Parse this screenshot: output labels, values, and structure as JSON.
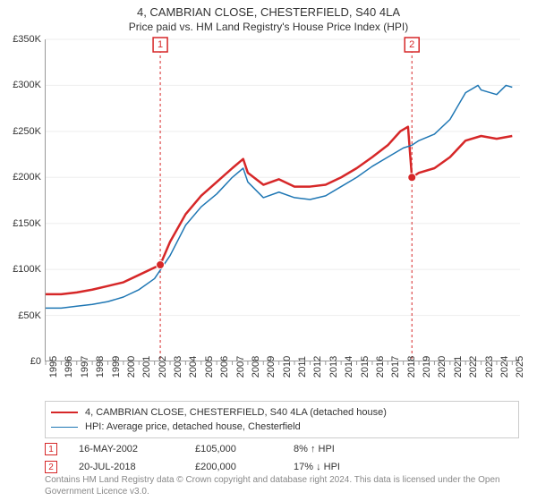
{
  "title": "4, CAMBRIAN CLOSE, CHESTERFIELD, S40 4LA",
  "subtitle": "Price paid vs. HM Land Registry's House Price Index (HPI)",
  "chart": {
    "type": "line",
    "background_color": "#ffffff",
    "grid_color": "#eeeeee",
    "axis_color": "#999999",
    "title_fontsize": 13,
    "subtitle_fontsize": 12,
    "tick_fontsize": 11,
    "legend_fontsize": 11,
    "x": {
      "min": 1995,
      "max": 2025.5,
      "ticks": [
        1995,
        1996,
        1997,
        1998,
        1999,
        2000,
        2001,
        2002,
        2003,
        2004,
        2005,
        2006,
        2007,
        2008,
        2009,
        2010,
        2011,
        2012,
        2013,
        2014,
        2015,
        2016,
        2017,
        2018,
        2019,
        2020,
        2021,
        2022,
        2023,
        2024,
        2025
      ]
    },
    "y": {
      "min": 0,
      "max": 350000,
      "ticks": [
        0,
        50000,
        100000,
        150000,
        200000,
        250000,
        300000,
        350000
      ],
      "tick_labels": [
        "£0",
        "£50K",
        "£100K",
        "£150K",
        "£200K",
        "£250K",
        "£300K",
        "£350K"
      ]
    },
    "series": [
      {
        "name": "4, CAMBRIAN CLOSE, CHESTERFIELD, S40 4LA (detached house)",
        "color": "#d62728",
        "line_width": 2.5,
        "data": [
          [
            1995,
            73000
          ],
          [
            1996,
            73000
          ],
          [
            1997,
            75000
          ],
          [
            1998,
            78000
          ],
          [
            1999,
            82000
          ],
          [
            2000,
            86000
          ],
          [
            2001,
            94000
          ],
          [
            2002.37,
            105000
          ],
          [
            2003,
            130000
          ],
          [
            2004,
            160000
          ],
          [
            2005,
            180000
          ],
          [
            2006,
            195000
          ],
          [
            2007,
            210000
          ],
          [
            2007.7,
            220000
          ],
          [
            2008,
            205000
          ],
          [
            2009,
            192000
          ],
          [
            2010,
            198000
          ],
          [
            2011,
            190000
          ],
          [
            2012,
            190000
          ],
          [
            2013,
            192000
          ],
          [
            2014,
            200000
          ],
          [
            2015,
            210000
          ],
          [
            2016,
            222000
          ],
          [
            2017,
            235000
          ],
          [
            2017.8,
            250000
          ],
          [
            2018.3,
            255000
          ],
          [
            2018.55,
            200000
          ],
          [
            2019,
            205000
          ],
          [
            2020,
            210000
          ],
          [
            2021,
            222000
          ],
          [
            2022,
            240000
          ],
          [
            2023,
            245000
          ],
          [
            2024,
            242000
          ],
          [
            2025,
            245000
          ]
        ]
      },
      {
        "name": "HPI: Average price, detached house, Chesterfield",
        "color": "#1f77b4",
        "line_width": 1.5,
        "data": [
          [
            1995,
            58000
          ],
          [
            1996,
            58000
          ],
          [
            1997,
            60000
          ],
          [
            1998,
            62000
          ],
          [
            1999,
            65000
          ],
          [
            2000,
            70000
          ],
          [
            2001,
            78000
          ],
          [
            2002,
            90000
          ],
          [
            2003,
            115000
          ],
          [
            2004,
            148000
          ],
          [
            2005,
            168000
          ],
          [
            2006,
            182000
          ],
          [
            2007,
            200000
          ],
          [
            2007.7,
            210000
          ],
          [
            2008,
            195000
          ],
          [
            2009,
            178000
          ],
          [
            2010,
            184000
          ],
          [
            2011,
            178000
          ],
          [
            2012,
            176000
          ],
          [
            2013,
            180000
          ],
          [
            2014,
            190000
          ],
          [
            2015,
            200000
          ],
          [
            2016,
            212000
          ],
          [
            2017,
            222000
          ],
          [
            2018,
            232000
          ],
          [
            2018.55,
            235000
          ],
          [
            2019,
            240000
          ],
          [
            2020,
            247000
          ],
          [
            2021,
            263000
          ],
          [
            2022,
            292000
          ],
          [
            2022.8,
            300000
          ],
          [
            2023,
            295000
          ],
          [
            2024,
            290000
          ],
          [
            2024.6,
            300000
          ],
          [
            2025,
            298000
          ]
        ]
      }
    ],
    "markers": [
      {
        "label": "1",
        "x": 2002.37,
        "y": 105000,
        "color": "#d62728"
      },
      {
        "label": "2",
        "x": 2018.55,
        "y": 200000,
        "color": "#d62728"
      }
    ]
  },
  "legend": {
    "border_color": "#cccccc"
  },
  "events": [
    {
      "label": "1",
      "color": "#d62728",
      "date": "16-MAY-2002",
      "price": "£105,000",
      "delta": "8% ↑ HPI"
    },
    {
      "label": "2",
      "color": "#d62728",
      "date": "20-JUL-2018",
      "price": "£200,000",
      "delta": "17% ↓ HPI"
    }
  ],
  "copyright": "Contains HM Land Registry data © Crown copyright and database right 2024. This data is licensed under the Open Government Licence v3.0."
}
